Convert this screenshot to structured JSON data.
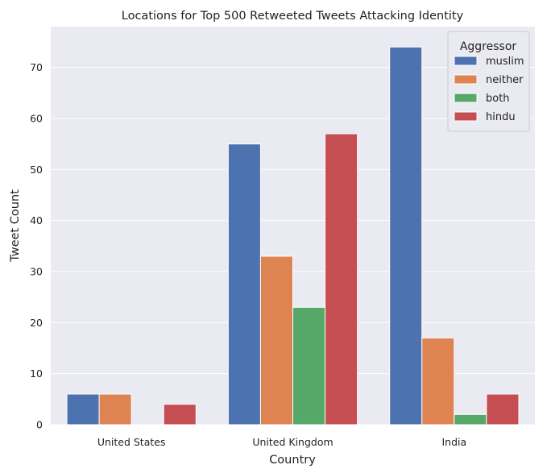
{
  "chart_data": {
    "type": "bar",
    "title": "Locations for Top 500 Retweeted Tweets Attacking Identity",
    "xlabel": "Country",
    "ylabel": "Tweet Count",
    "categories": [
      "United States",
      "United Kingdom",
      "India"
    ],
    "series": [
      {
        "name": "muslim",
        "color": "#4c72b0",
        "values": [
          6,
          55,
          74
        ]
      },
      {
        "name": "neither",
        "color": "#dd8452",
        "values": [
          6,
          33,
          17
        ]
      },
      {
        "name": "both",
        "color": "#55a868",
        "values": [
          0,
          23,
          2
        ]
      },
      {
        "name": "hindu",
        "color": "#c44e52",
        "values": [
          4,
          57,
          6
        ]
      }
    ],
    "ylim": [
      0,
      78
    ],
    "yticks": [
      0,
      10,
      20,
      30,
      40,
      50,
      60,
      70
    ],
    "grid": true,
    "legend": {
      "title": "Aggressor",
      "position": "top-right"
    },
    "background_color": "#eaeaf2"
  }
}
